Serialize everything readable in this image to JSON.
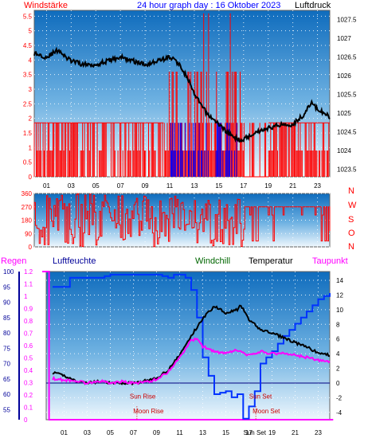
{
  "colors": {
    "wind_red": "#ff0000",
    "gust_blue": "#0000ff",
    "pressure_black": "#000000",
    "humidity_blue": "#0033ff",
    "temp_black": "#000000",
    "dewpoint_magenta": "#ff00ff",
    "sky_top": "#1070c0",
    "sky_bottom": "#e8f4fc",
    "label_dark_blue": "#000099",
    "windchill_green": "#006600"
  },
  "chart_data": [
    {
      "type": "line",
      "panel": "wind-pressure",
      "title": "24 hour graph day : 16 Oktober 2023",
      "left_label": "Windstärke",
      "right_label": "Luftdruck",
      "x_ticks": [
        "01",
        "03",
        "05",
        "07",
        "09",
        "11",
        "13",
        "15",
        "17",
        "19",
        "21",
        "23"
      ],
      "left_ticks": [
        "0",
        "0.5",
        "1",
        "1.5",
        "2",
        "2.5",
        "3",
        "3.5",
        "4",
        "4.5",
        "5",
        "5.5"
      ],
      "right_ticks": [
        "1023.5",
        "1024",
        "1024.5",
        "1025",
        "1025.5",
        "1026",
        "1026.5",
        "1027",
        "1027.5"
      ],
      "left_ylim": [
        0,
        5.7
      ],
      "right_ylim": [
        1023.3,
        1027.75
      ],
      "x_range": [
        0,
        24
      ],
      "series": [
        {
          "name": "Windstärke",
          "role": "wind",
          "seed": 7,
          "color_key": "wind_red"
        },
        {
          "name": "",
          "role": "gust",
          "color_key": "gust_blue"
        },
        {
          "name": "Luftdruck",
          "role": "pressure",
          "color_key": "pressure_black",
          "x": [
            0,
            1,
            2,
            2.5,
            3,
            4,
            5,
            6,
            7,
            8,
            9,
            10,
            11,
            11.5,
            12,
            12.5,
            13,
            14,
            15,
            16,
            16.5,
            17,
            18,
            19,
            20,
            21,
            22,
            22.5,
            23,
            23.5,
            24
          ],
          "y": [
            1026.6,
            1026.5,
            1026.7,
            1026.5,
            1026.4,
            1026.3,
            1026.3,
            1026.4,
            1026.5,
            1026.4,
            1026.3,
            1026.4,
            1026.5,
            1026.4,
            1026.2,
            1025.9,
            1025.5,
            1025.0,
            1024.7,
            1024.4,
            1024.3,
            1024.3,
            1024.5,
            1024.6,
            1024.7,
            1024.7,
            1025.0,
            1025.3,
            1025.1,
            1025.0,
            1024.9
          ]
        }
      ]
    },
    {
      "type": "scatter",
      "panel": "wind-direction",
      "left_ticks": [
        "0",
        "90",
        "180",
        "270",
        "360"
      ],
      "right_labels": [
        "N",
        "W",
        "S",
        "O",
        "N"
      ],
      "ylim": [
        0,
        360
      ],
      "x_range": [
        0,
        24
      ],
      "series": [
        {
          "name": "",
          "role": "direction",
          "seed": 13,
          "color_key": "wind_red"
        }
      ]
    },
    {
      "type": "line",
      "panel": "humidity-temperature",
      "labels": {
        "regen": "Regen",
        "humidity": "Luftfeuchte",
        "windchill": "Windchill",
        "temperature": "Temperatur",
        "dewpoint": "Taupunkt"
      },
      "rain_ticks": [
        "0",
        "0.1",
        "0.2",
        "0.3",
        "0.4",
        "0.5",
        "0.6",
        "0.7",
        "0.8",
        "0.9",
        "1",
        "1.1",
        "1.2"
      ],
      "humidity_ticks": [
        "55",
        "60",
        "65",
        "70",
        "75",
        "80",
        "85",
        "90",
        "95",
        "100"
      ],
      "temp_ticks": [
        "-4",
        "-2",
        "0",
        "2",
        "4",
        "6",
        "8",
        "10",
        "12",
        "14"
      ],
      "x_ticks": [
        "01",
        "03",
        "05",
        "07",
        "09",
        "11",
        "13",
        "15",
        "17",
        "19",
        "21",
        "23"
      ],
      "annotations": [
        {
          "text": "Sun Rise",
          "hour": 7.8,
          "temp": -1.8
        },
        {
          "text": "Moon Rise",
          "hour": 8.3,
          "temp": -3.8
        },
        {
          "text": "Sun Set",
          "hour": 18.0,
          "temp": -1.8
        },
        {
          "text": "Moon Set",
          "hour": 18.5,
          "temp": -3.8
        },
        {
          "text": "Sun Set",
          "hour": 17.5,
          "temp": -5.6,
          "role": "axis-marker"
        }
      ],
      "temp_ylim": [
        -5,
        15.2
      ],
      "humidity_ylim": [
        51.7,
        100
      ],
      "rain_ylim": [
        0,
        1.2
      ],
      "series": [
        {
          "name": "Regen",
          "role": "rain",
          "color_key": "dewpoint_magenta",
          "x": [
            -0.9,
            -0.3,
            -0.3,
            24.3
          ],
          "y": [
            1.2,
            1.2,
            0,
            0
          ]
        },
        {
          "name": "Luftfeuchte",
          "role": "humidity",
          "color_key": "humidity_blue",
          "x": [
            0,
            1,
            1.5,
            3,
            4,
            5,
            6,
            7,
            9,
            10,
            10.5,
            11,
            11.5,
            12,
            12.5,
            13,
            14,
            15,
            15.5,
            16,
            16.5,
            17,
            17.5,
            18,
            19,
            20,
            21,
            22,
            23,
            24
          ],
          "y": [
            95,
            95,
            98,
            98,
            98,
            99,
            99,
            99,
            99,
            98,
            99,
            99,
            98,
            94,
            85,
            72,
            60,
            61,
            59,
            60,
            52,
            56,
            61,
            70,
            74,
            79,
            83,
            87,
            91,
            93
          ]
        },
        {
          "name": "Temperatur",
          "role": "temperature",
          "color_key": "temp_black",
          "x": [
            0,
            1,
            2,
            3,
            4,
            5,
            6,
            7,
            8,
            9,
            10,
            11,
            12,
            13,
            14,
            15,
            16,
            16.3,
            17,
            18,
            19,
            20,
            21,
            22,
            23,
            24
          ],
          "y": [
            1.4,
            1.0,
            0.3,
            0.0,
            0.2,
            0.0,
            0.0,
            0.0,
            0.3,
            0.6,
            1.8,
            3.8,
            6.4,
            8.8,
            10.5,
            9.6,
            10.0,
            10.6,
            8.6,
            7.3,
            6.8,
            6.2,
            5.5,
            4.9,
            4.1,
            3.8
          ]
        },
        {
          "name": "Taupunkt",
          "role": "dewpoint",
          "color_key": "dewpoint_magenta",
          "x": [
            0,
            1,
            2,
            3,
            4,
            5,
            6,
            7,
            8,
            9,
            10,
            11,
            12,
            12.5,
            13,
            14,
            15,
            16,
            17,
            18,
            19,
            20,
            21,
            22,
            23,
            24
          ],
          "y": [
            0.6,
            0.4,
            0.3,
            0.0,
            0.3,
            0.0,
            0.2,
            0.0,
            0.1,
            0.5,
            1.5,
            3.5,
            5.8,
            6.0,
            5.0,
            4.3,
            4.0,
            4.5,
            3.7,
            4.3,
            4.0,
            4.1,
            3.8,
            3.5,
            3.1,
            2.9
          ]
        }
      ]
    }
  ]
}
